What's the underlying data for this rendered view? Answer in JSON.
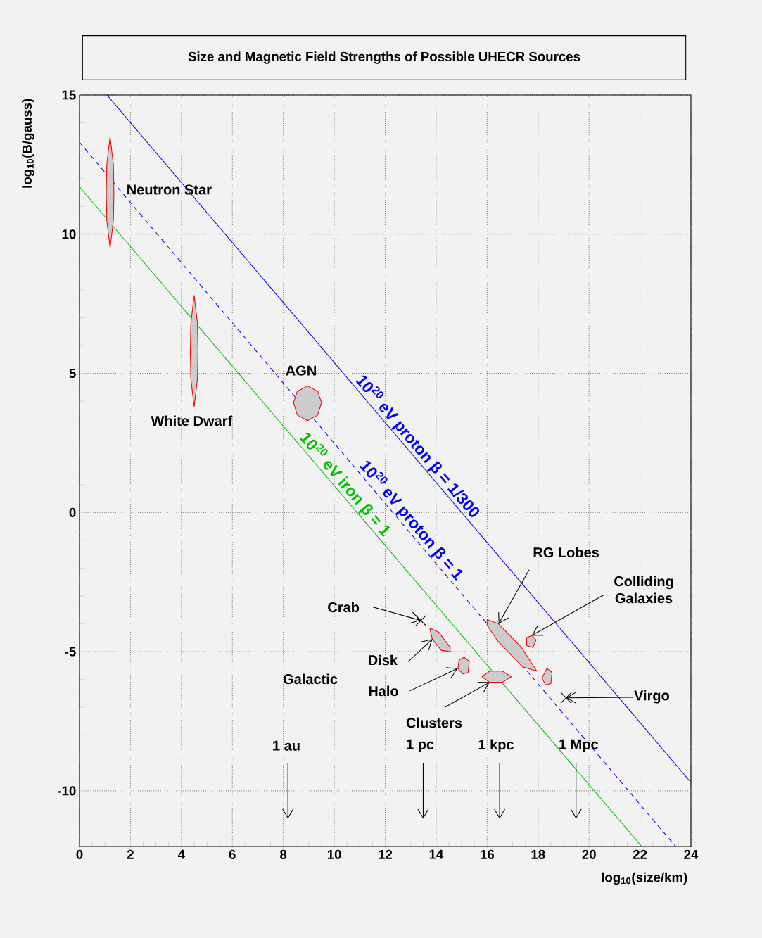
{
  "chart_data": {
    "type": "line",
    "title": "Size and Magnetic Field Strengths of Possible UHECR Sources",
    "xlabel": "log$_{10}$(size/km)",
    "ylabel": "log$_{10}$(B/gauss)",
    "xlim": [
      0,
      24
    ],
    "ylim": [
      -12,
      15
    ],
    "xticks": [
      0,
      2,
      4,
      6,
      8,
      10,
      12,
      14,
      16,
      18,
      20,
      22,
      24
    ],
    "yticks": [
      -10,
      -5,
      0,
      5,
      10,
      15
    ],
    "grid": true,
    "series": [
      {
        "name": "10$^{20}$ eV proton    β = 1/300",
        "type": "line",
        "color": "#0000ff",
        "line_style": "solid",
        "x": [
          1.08,
          24
        ],
        "values": [
          15,
          -9.7
        ]
      },
      {
        "name": "10$^{20}$ eV proton    β = 1",
        "type": "line",
        "color": "#0000ff",
        "line_style": "dashed",
        "x": [
          0,
          23.4
        ],
        "values": [
          13.3,
          -12
        ]
      },
      {
        "name": "10$^{20}$ eV iron  β = 1",
        "type": "line",
        "color": "#00c000",
        "line_style": "solid",
        "x": [
          0,
          22.07
        ],
        "values": [
          11.7,
          -12
        ]
      },
      {
        "type": "area",
        "color": "#ff0000",
        "x": [
          1.2,
          1.33,
          1.35,
          1.33,
          1.2,
          1.07,
          1.05,
          1.07
        ],
        "values": [
          13.5,
          12.5,
          11.5,
          10.5,
          9.5,
          10.5,
          11.5,
          12.5
        ]
      },
      {
        "type": "area",
        "color": "#ff0000",
        "x": [
          4.5,
          4.63,
          4.65,
          4.63,
          4.5,
          4.37,
          4.35,
          4.37
        ],
        "values": [
          7.8,
          6.8,
          5.8,
          4.8,
          3.8,
          4.8,
          5.8,
          6.8
        ]
      },
      {
        "type": "area",
        "color": "#ff0000",
        "x": [
          8.95,
          9.35,
          9.5,
          9.35,
          8.95,
          8.55,
          8.4,
          8.55
        ],
        "values": [
          4.55,
          4.35,
          3.95,
          3.5,
          3.3,
          3.5,
          3.95,
          4.35
        ]
      },
      {
        "type": "area",
        "color": "#ff0000",
        "x": [
          13.75,
          14.1,
          14.55,
          14.55,
          14.2,
          13.85
        ],
        "values": [
          -4.15,
          -4.3,
          -4.85,
          -5.0,
          -4.95,
          -4.55
        ]
      },
      {
        "type": "area",
        "color": "#ff0000",
        "x": [
          15.1,
          15.3,
          15.25,
          15.05,
          14.85,
          14.9
        ],
        "values": [
          -5.2,
          -5.35,
          -5.75,
          -5.8,
          -5.6,
          -5.3
        ]
      },
      {
        "type": "area",
        "color": "#ff0000",
        "x": [
          15.8,
          16.1,
          16.6,
          16.95,
          16.6,
          16.1
        ],
        "values": [
          -5.9,
          -5.7,
          -5.7,
          -5.9,
          -6.1,
          -6.1
        ]
      },
      {
        "type": "area",
        "color": "#ff0000",
        "x": [
          16.0,
          16.45,
          17.35,
          17.95,
          17.4,
          16.4,
          16.0
        ],
        "values": [
          -3.85,
          -4.0,
          -4.85,
          -5.7,
          -5.55,
          -4.6,
          -4.05
        ]
      },
      {
        "type": "area",
        "color": "#ff0000",
        "x": [
          17.55,
          17.75,
          17.92,
          17.8,
          17.55
        ],
        "values": [
          -4.5,
          -4.42,
          -4.58,
          -4.85,
          -4.78
        ]
      },
      {
        "type": "area",
        "color": "#ff0000",
        "x": [
          18.35,
          18.55,
          18.5,
          18.3,
          18.15
        ],
        "values": [
          -5.6,
          -5.75,
          -6.15,
          -6.2,
          -5.95
        ]
      },
      {
        "type": "scatter",
        "color": "#000000",
        "marker": "cross",
        "x": [
          13.4,
          19.1
        ],
        "values": [
          -3.88,
          -6.66
        ]
      }
    ],
    "annotations": [
      "Neutron Star",
      "White Dwarf",
      "AGN",
      {
        "text": "RG Lobes",
        "x": 16.45,
        "y": -4.0
      },
      {
        "text": "Colliding Galaxies",
        "x": 17.75,
        "y": -4.42
      },
      {
        "text": "Crab",
        "x": 13.4,
        "y": -3.88
      },
      {
        "text": "Disk",
        "x": 13.85,
        "y": -4.55
      },
      "Galactic",
      {
        "text": "Halo",
        "x": 14.85,
        "y": -5.6
      },
      {
        "text": "Clusters",
        "x": 16.1,
        "y": -6.1
      },
      "Virgo",
      "1 au",
      "1 pc",
      "1 kpc",
      "1 Mpc"
    ]
  }
}
